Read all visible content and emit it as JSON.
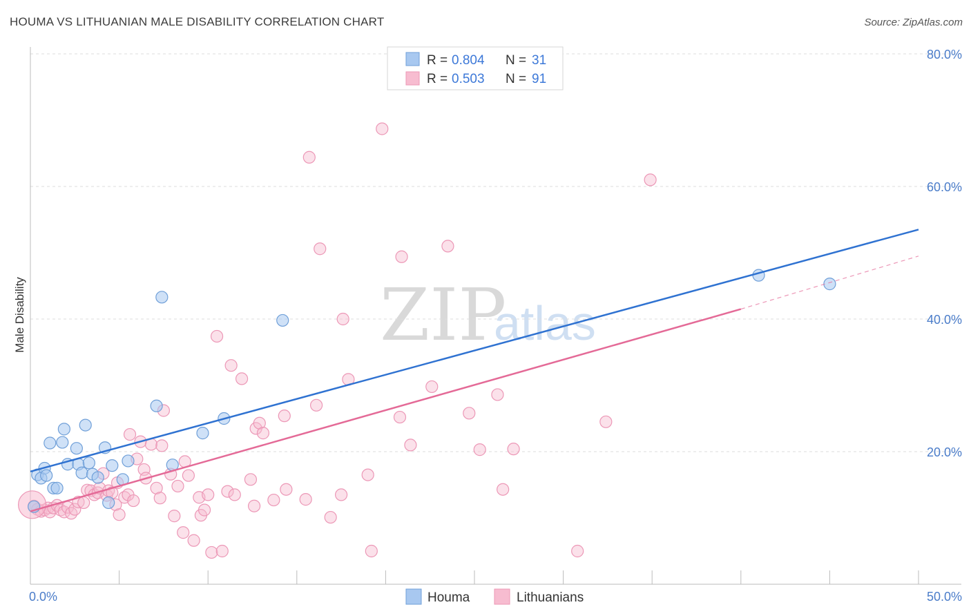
{
  "header": {
    "title": "HOUMA VS LITHUANIAN MALE DISABILITY CORRELATION CHART",
    "source": "Source: ZipAtlas.com"
  },
  "legend": {
    "houma": {
      "r_label": "R = ",
      "r_value": "0.804",
      "n_label": "N = ",
      "n_value": "31"
    },
    "lithuanians": {
      "r_label": "R = ",
      "r_value": "0.503",
      "n_label": "N = ",
      "n_value": "91"
    }
  },
  "bottom_legend": {
    "houma": "Houma",
    "lithuanians": "Lithuanians"
  },
  "watermark": {
    "zip": "ZIP",
    "atlas": "atlas"
  },
  "colors": {
    "houma_fill": "#a8c8f0",
    "houma_stroke": "#6f9fd8",
    "houma_line": "#2f72d1",
    "lith_fill": "#f7bcd0",
    "lith_stroke": "#ec97b6",
    "lith_line": "#e46a97",
    "grid": "#dddddd",
    "tick_label": "#4a7cc9"
  },
  "chart_data": {
    "type": "scatter",
    "title": "HOUMA VS LITHUANIAN MALE DISABILITY CORRELATION CHART",
    "xlabel": "",
    "ylabel": "Male Disability",
    "xlim": [
      0,
      50
    ],
    "ylim": [
      0,
      80
    ],
    "x_tick_labels": [
      "0.0%",
      "50.0%"
    ],
    "y_ticks": [
      20,
      40,
      60,
      80
    ],
    "y_tick_labels": [
      "20.0%",
      "40.0%",
      "60.0%",
      "80.0%"
    ],
    "grid": true,
    "series": [
      {
        "name": "Houma",
        "R": 0.804,
        "N": 31,
        "trend": {
          "x0": 0.0,
          "y0": 17.0,
          "x1": 50.0,
          "y1": 53.5
        },
        "points": [
          [
            0.2,
            11.7
          ],
          [
            0.4,
            16.5
          ],
          [
            0.6,
            16.0
          ],
          [
            0.8,
            17.5
          ],
          [
            0.9,
            16.4
          ],
          [
            1.1,
            21.3
          ],
          [
            1.3,
            14.5
          ],
          [
            1.5,
            14.5
          ],
          [
            1.8,
            21.4
          ],
          [
            1.9,
            23.4
          ],
          [
            2.1,
            18.1
          ],
          [
            2.6,
            20.5
          ],
          [
            2.7,
            18.1
          ],
          [
            2.9,
            16.8
          ],
          [
            3.1,
            24.0
          ],
          [
            3.3,
            18.3
          ],
          [
            3.5,
            16.6
          ],
          [
            3.8,
            16.1
          ],
          [
            4.2,
            20.6
          ],
          [
            4.4,
            12.3
          ],
          [
            4.6,
            17.9
          ],
          [
            5.2,
            15.8
          ],
          [
            5.5,
            18.6
          ],
          [
            7.1,
            26.9
          ],
          [
            7.4,
            43.3
          ],
          [
            8.0,
            18.0
          ],
          [
            9.7,
            22.8
          ],
          [
            10.9,
            25.0
          ],
          [
            14.2,
            39.8
          ],
          [
            41.0,
            46.6
          ],
          [
            45.0,
            45.3
          ]
        ]
      },
      {
        "name": "Lithuanians",
        "R": 0.503,
        "N": 91,
        "trend": {
          "x0": 0.0,
          "y0": 11.0,
          "x1": 40.0,
          "y1": 41.5
        },
        "trend_dashed": {
          "x0": 40.0,
          "y0": 41.5,
          "x1": 50.0,
          "y1": 49.5
        },
        "points": [
          [
            0.2,
            11.8
          ],
          [
            0.4,
            11.3
          ],
          [
            0.6,
            11.0
          ],
          [
            0.8,
            11.2
          ],
          [
            1.0,
            11.5
          ],
          [
            1.1,
            10.9
          ],
          [
            1.3,
            11.5
          ],
          [
            1.5,
            11.9
          ],
          [
            1.7,
            11.2
          ],
          [
            1.9,
            10.9
          ],
          [
            2.1,
            11.6
          ],
          [
            2.3,
            10.7
          ],
          [
            2.5,
            11.3
          ],
          [
            2.7,
            12.4
          ],
          [
            3.0,
            12.3
          ],
          [
            3.2,
            14.2
          ],
          [
            3.4,
            14.1
          ],
          [
            3.6,
            13.5
          ],
          [
            3.8,
            13.8
          ],
          [
            3.9,
            14.5
          ],
          [
            4.1,
            16.7
          ],
          [
            4.3,
            13.4
          ],
          [
            4.4,
            14.1
          ],
          [
            4.6,
            13.8
          ],
          [
            4.8,
            12.0
          ],
          [
            4.9,
            15.3
          ],
          [
            5.0,
            10.5
          ],
          [
            5.3,
            13.1
          ],
          [
            5.5,
            13.5
          ],
          [
            5.6,
            22.6
          ],
          [
            5.8,
            12.6
          ],
          [
            6.0,
            18.9
          ],
          [
            6.2,
            21.5
          ],
          [
            6.4,
            17.3
          ],
          [
            6.5,
            16.0
          ],
          [
            6.8,
            21.1
          ],
          [
            7.1,
            14.5
          ],
          [
            7.3,
            13.0
          ],
          [
            7.4,
            20.9
          ],
          [
            7.5,
            26.2
          ],
          [
            7.9,
            16.6
          ],
          [
            8.1,
            10.3
          ],
          [
            8.3,
            14.8
          ],
          [
            8.6,
            7.8
          ],
          [
            8.7,
            18.5
          ],
          [
            8.9,
            16.4
          ],
          [
            9.2,
            6.6
          ],
          [
            9.5,
            13.1
          ],
          [
            9.6,
            10.4
          ],
          [
            9.8,
            11.2
          ],
          [
            10.0,
            13.5
          ],
          [
            10.2,
            4.8
          ],
          [
            10.5,
            37.4
          ],
          [
            10.8,
            5.0
          ],
          [
            11.1,
            14.0
          ],
          [
            11.3,
            33.0
          ],
          [
            11.5,
            13.5
          ],
          [
            11.9,
            31.0
          ],
          [
            12.4,
            15.8
          ],
          [
            12.6,
            11.8
          ],
          [
            12.7,
            23.5
          ],
          [
            12.9,
            24.3
          ],
          [
            13.1,
            22.8
          ],
          [
            13.7,
            12.7
          ],
          [
            14.3,
            25.4
          ],
          [
            14.4,
            14.3
          ],
          [
            15.5,
            12.8
          ],
          [
            15.7,
            64.4
          ],
          [
            16.1,
            27.0
          ],
          [
            16.3,
            50.6
          ],
          [
            16.9,
            10.1
          ],
          [
            17.5,
            13.5
          ],
          [
            17.6,
            40.0
          ],
          [
            17.9,
            30.9
          ],
          [
            19.0,
            16.5
          ],
          [
            19.2,
            5.0
          ],
          [
            19.8,
            68.7
          ],
          [
            20.8,
            25.2
          ],
          [
            20.9,
            49.4
          ],
          [
            21.4,
            21.0
          ],
          [
            22.6,
            29.8
          ],
          [
            23.5,
            51.0
          ],
          [
            24.7,
            25.8
          ],
          [
            25.3,
            20.3
          ],
          [
            26.3,
            28.6
          ],
          [
            26.6,
            14.3
          ],
          [
            27.2,
            20.4
          ],
          [
            30.8,
            5.0
          ],
          [
            32.4,
            24.5
          ],
          [
            34.9,
            61.0
          ],
          [
            0.1,
            12.0
          ]
        ]
      }
    ]
  }
}
